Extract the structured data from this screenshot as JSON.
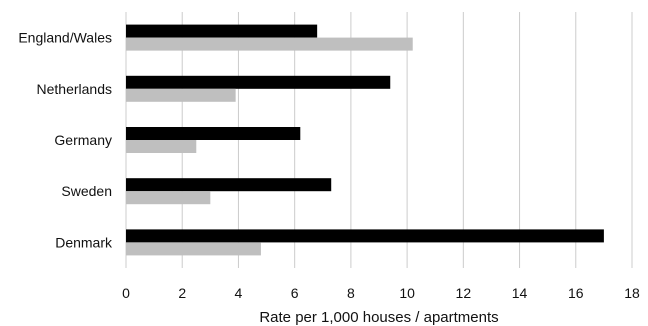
{
  "chart_data": {
    "type": "bar",
    "orientation": "horizontal",
    "categories": [
      "England/Wales",
      "Netherlands",
      "Germany",
      "Sweden",
      "Denmark"
    ],
    "series": [
      {
        "color": "#000000",
        "values": [
          6.8,
          9.4,
          6.2,
          7.3,
          17.0
        ]
      },
      {
        "color": "#bfbfbf",
        "values": [
          10.2,
          3.9,
          2.5,
          3.0,
          4.8
        ]
      }
    ],
    "xlabel": "Rate per 1,000 houses / apartments",
    "ylabel": "",
    "title": "",
    "xlim": [
      0,
      18
    ],
    "xticks": [
      0,
      2,
      4,
      6,
      8,
      10,
      12,
      14,
      16,
      18
    ],
    "grid": "vertical",
    "legend": "none"
  }
}
